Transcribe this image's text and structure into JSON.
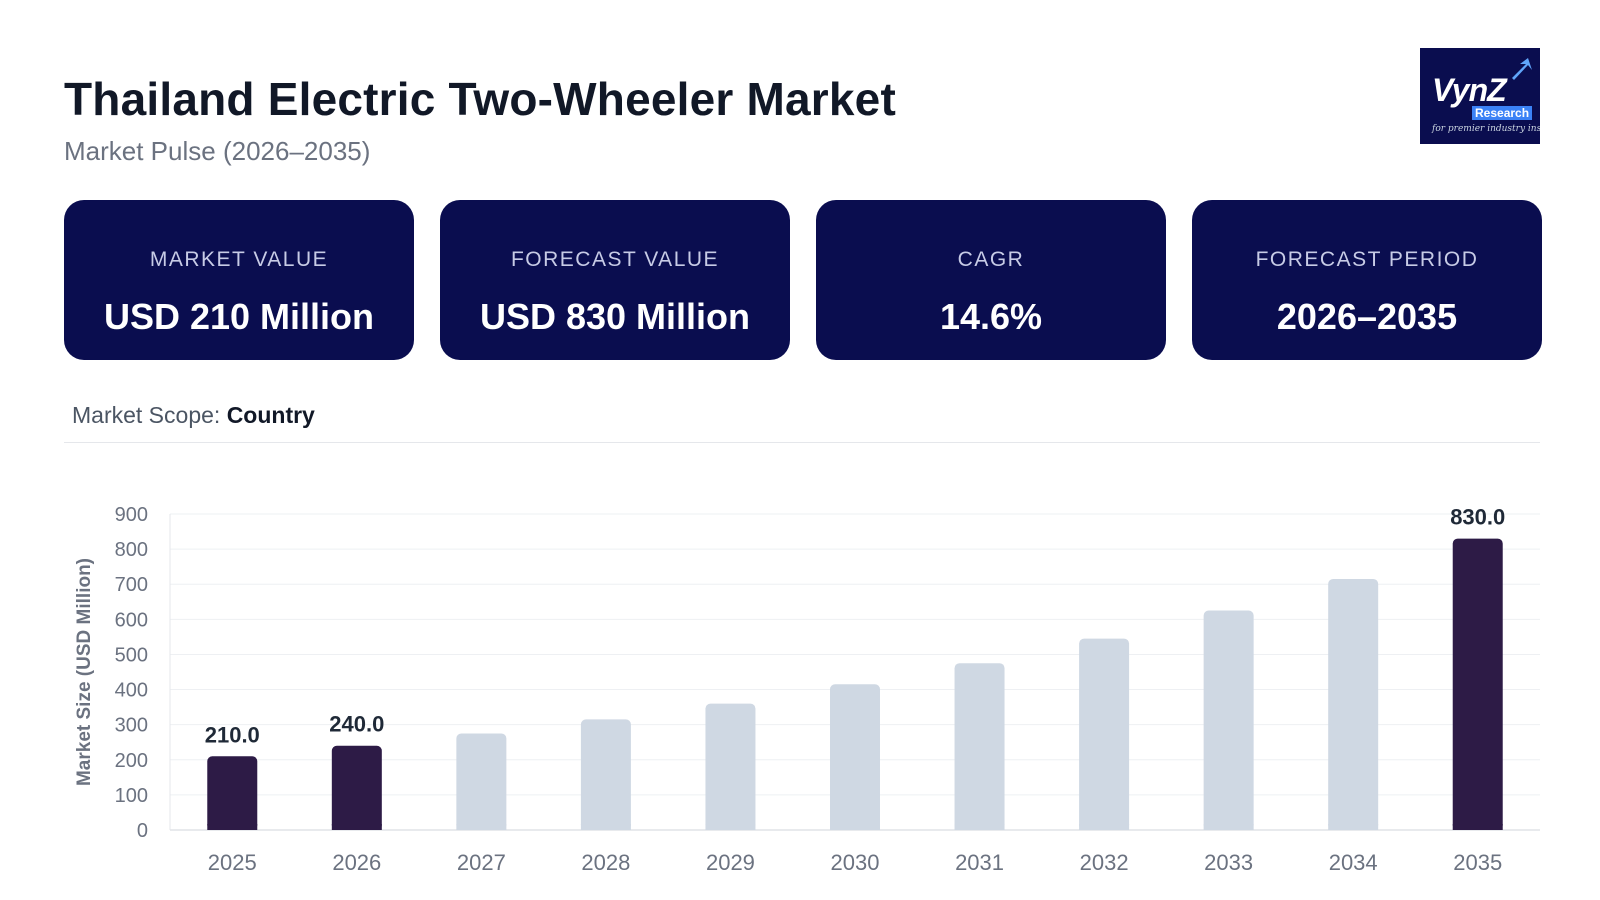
{
  "header": {
    "title": "Thailand Electric Two-Wheeler Market",
    "subtitle": "Market Pulse (2026–2035)"
  },
  "logo": {
    "main": "VynZ",
    "sub": "Research",
    "tagline": "for premier industry insights"
  },
  "kpis": [
    {
      "label": "MARKET VALUE",
      "value": "USD 210 Million"
    },
    {
      "label": "FORECAST VALUE",
      "value": "USD 830 Million"
    },
    {
      "label": "CAGR",
      "value": "14.6%"
    },
    {
      "label": "FORECAST PERIOD",
      "value": "2026–2035"
    }
  ],
  "scope": {
    "label": "Market Scope:",
    "value": "Country"
  },
  "colors": {
    "navy": "#0a0d4f",
    "highlight_bar": "#2d1b46",
    "muted_bar": "#cfd8e3"
  },
  "chart_data": {
    "type": "bar",
    "categories": [
      "2025",
      "2026",
      "2027",
      "2028",
      "2029",
      "2030",
      "2031",
      "2032",
      "2033",
      "2034",
      "2035"
    ],
    "values": [
      210,
      240,
      275,
      315,
      360,
      415,
      475,
      545,
      625,
      715,
      830
    ],
    "highlighted": [
      true,
      true,
      false,
      false,
      false,
      false,
      false,
      false,
      false,
      false,
      true
    ],
    "data_labels": [
      "210.0",
      "240.0",
      null,
      null,
      null,
      null,
      null,
      null,
      null,
      null,
      "830.0"
    ],
    "title": "",
    "xlabel": "",
    "ylabel": "Market Size (USD Million)",
    "ylim": [
      0,
      900
    ],
    "yticks": [
      0,
      100,
      200,
      300,
      400,
      500,
      600,
      700,
      800,
      900
    ],
    "grid": true
  }
}
